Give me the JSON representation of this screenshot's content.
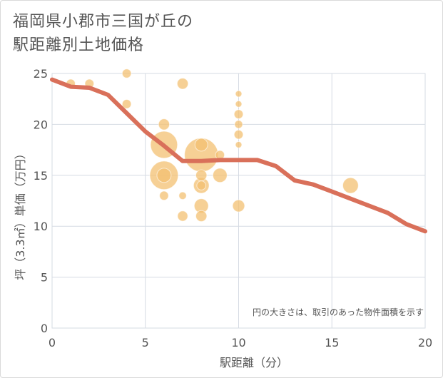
{
  "title": "福岡県小郡市三国が丘の\n駅距離別土地価格",
  "chart_data": {
    "type": "scatter",
    "title": "福岡県小郡市三国が丘の駅距離別土地価格",
    "xlabel": "駅距離（分）",
    "ylabel": "坪（3.3㎡）単価（万円）",
    "xlim": [
      0,
      20
    ],
    "ylim": [
      0,
      25
    ],
    "xticks": [
      0,
      5,
      10,
      15,
      20
    ],
    "yticks": [
      0,
      5,
      10,
      15,
      20,
      25
    ],
    "grid": true,
    "note": "円の大きさは、取引のあった物件面積を示す",
    "bubble_color": "#f3c071",
    "line_color": "#d9705a",
    "points": [
      {
        "x": 1,
        "y": 24,
        "size": 1
      },
      {
        "x": 2,
        "y": 24,
        "size": 1
      },
      {
        "x": 4,
        "y": 25,
        "size": 1
      },
      {
        "x": 4,
        "y": 22,
        "size": 1
      },
      {
        "x": 7,
        "y": 24,
        "size": 1.5
      },
      {
        "x": 6,
        "y": 20,
        "size": 1.5
      },
      {
        "x": 6,
        "y": 18,
        "size": 9
      },
      {
        "x": 6,
        "y": 15,
        "size": 10
      },
      {
        "x": 6,
        "y": 15,
        "size": 2.5
      },
      {
        "x": 6,
        "y": 13,
        "size": 1
      },
      {
        "x": 7,
        "y": 13,
        "size": 0.7
      },
      {
        "x": 7,
        "y": 11,
        "size": 1.3
      },
      {
        "x": 8,
        "y": 17,
        "size": 14
      },
      {
        "x": 8,
        "y": 18,
        "size": 2
      },
      {
        "x": 8,
        "y": 15,
        "size": 1.5
      },
      {
        "x": 8,
        "y": 14,
        "size": 3
      },
      {
        "x": 8,
        "y": 14,
        "size": 1
      },
      {
        "x": 8,
        "y": 12,
        "size": 2.5
      },
      {
        "x": 8,
        "y": 11,
        "size": 1.5
      },
      {
        "x": 9,
        "y": 17,
        "size": 1
      },
      {
        "x": 9,
        "y": 15,
        "size": 2.5
      },
      {
        "x": 10,
        "y": 23,
        "size": 0.5
      },
      {
        "x": 10,
        "y": 22,
        "size": 0.5
      },
      {
        "x": 10,
        "y": 21,
        "size": 1
      },
      {
        "x": 10,
        "y": 20,
        "size": 0.8
      },
      {
        "x": 10,
        "y": 19,
        "size": 1
      },
      {
        "x": 10,
        "y": 18,
        "size": 0.5
      },
      {
        "x": 10,
        "y": 12,
        "size": 1.8
      },
      {
        "x": 16,
        "y": 14,
        "size": 3
      }
    ],
    "trend": {
      "x": [
        0,
        1,
        2,
        3,
        4,
        5,
        6,
        7,
        8,
        9,
        10,
        11,
        12,
        13,
        14,
        15,
        16,
        17,
        18,
        19,
        20
      ],
      "y": [
        24.4,
        23.7,
        23.6,
        22.9,
        21.1,
        19.3,
        17.9,
        16.4,
        16.4,
        16.5,
        16.5,
        16.5,
        15.9,
        14.5,
        14.1,
        13.4,
        12.7,
        12.0,
        11.3,
        10.2,
        9.5
      ]
    }
  }
}
